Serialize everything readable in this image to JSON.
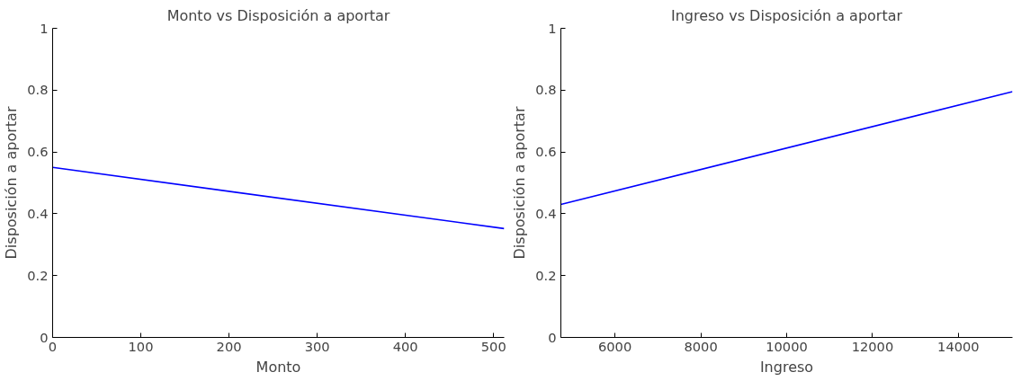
{
  "chart_data": [
    {
      "type": "line",
      "title": "Monto vs Disposición a aportar",
      "xlabel": "Monto",
      "ylabel": "Disposición a aportar",
      "x": [
        0,
        512
      ],
      "series": [
        {
          "color": "#0000ff",
          "values": [
            0.55,
            0.352
          ]
        }
      ],
      "xlim": [
        0,
        512
      ],
      "ylim": [
        0,
        1
      ],
      "xticks": [
        0,
        100,
        200,
        300,
        400,
        500
      ],
      "yticks": [
        0,
        0.2,
        0.4,
        0.6,
        0.8,
        1
      ],
      "grid": false
    },
    {
      "type": "line",
      "title": "Ingreso vs Disposición a aportar",
      "xlabel": "Ingreso",
      "ylabel": "Disposición a aportar",
      "x": [
        4740,
        15260
      ],
      "series": [
        {
          "color": "#0000ff",
          "values": [
            0.43,
            0.795
          ]
        }
      ],
      "xlim": [
        4740,
        15260
      ],
      "ylim": [
        0,
        1
      ],
      "xticks": [
        6000,
        8000,
        10000,
        12000,
        14000
      ],
      "yticks": [
        0,
        0.2,
        0.4,
        0.6,
        0.8,
        1
      ],
      "grid": false
    }
  ]
}
